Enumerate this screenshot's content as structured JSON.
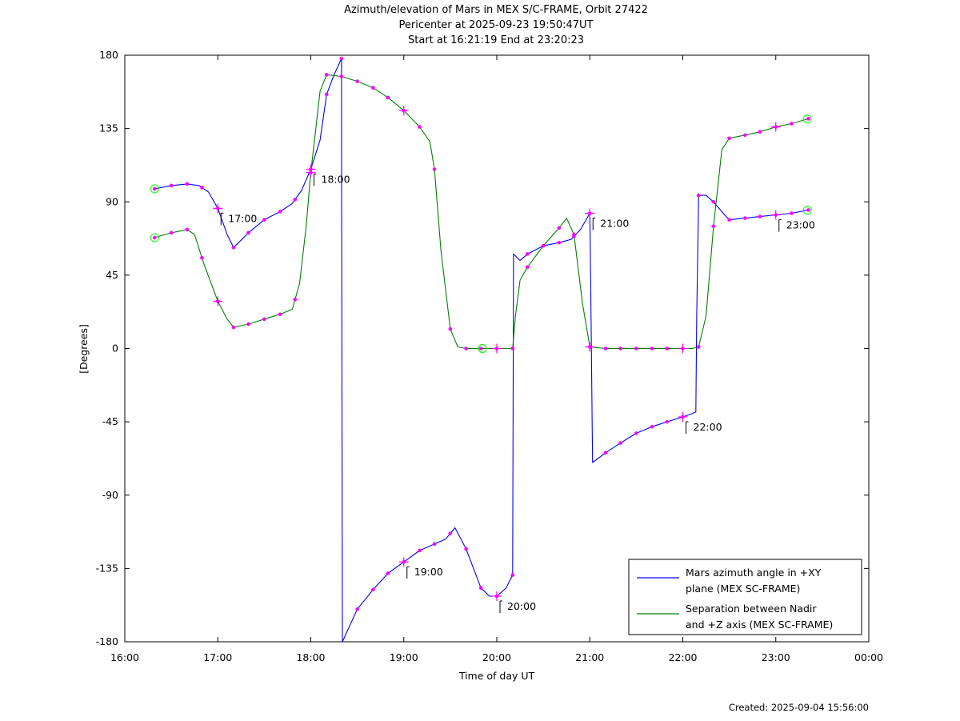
{
  "title_lines": [
    "Azimuth/elevation of Mars in MEX S/C-FRAME,  Orbit 27422",
    "Pericenter at 2025-09-23 19:50:47UT",
    "Start at 16:21:19 End at 23:20:23"
  ],
  "footer": "Created: 2025-09-04 15:56:00",
  "chart_data": {
    "type": "line",
    "xlabel": "Time of day UT",
    "ylabel": "[Degrees]",
    "xlim": [
      16.0,
      24.0
    ],
    "ylim": [
      -180,
      180
    ],
    "x_ticks": [
      16,
      17,
      18,
      19,
      20,
      21,
      22,
      23,
      24
    ],
    "x_tick_labels": [
      "16:00",
      "17:00",
      "18:00",
      "19:00",
      "20:00",
      "21:00",
      "22:00",
      "23:00",
      "00:00"
    ],
    "y_ticks": [
      180,
      135,
      90,
      45,
      0,
      -45,
      -90,
      -135,
      -180
    ],
    "y_tick_labels": [
      "180",
      "135",
      "90",
      "45",
      "0",
      "-45",
      "-90",
      "-135",
      "-180"
    ],
    "grid": false,
    "legend_position": "bottom-right",
    "series": [
      {
        "name": "Mars azimuth angle in +XY plane (MEX SC-FRAME)",
        "legend_lines": [
          "Mars azimuth angle in +XY",
          "plane (MEX SC-FRAME)"
        ],
        "color": "#0000ff",
        "x": [
          16.32,
          16.5,
          16.67,
          16.8,
          16.9,
          17.0,
          17.1,
          17.17,
          17.33,
          17.5,
          17.67,
          17.8,
          17.9,
          18.0,
          18.1,
          18.17,
          18.25,
          18.33,
          18.331,
          18.34,
          18.5,
          18.67,
          18.83,
          19.0,
          19.17,
          19.33,
          19.45,
          19.55,
          19.67,
          19.83,
          19.92,
          20.0,
          20.1,
          20.17,
          20.18,
          20.25,
          20.33,
          20.5,
          20.67,
          20.8,
          20.9,
          21.0,
          21.01,
          21.03,
          21.17,
          21.33,
          21.5,
          21.67,
          21.83,
          22.0,
          22.1,
          22.14,
          22.15,
          22.17,
          22.25,
          22.33,
          22.45,
          22.5,
          22.67,
          22.83,
          23.0,
          23.17,
          23.35
        ],
        "y": [
          98,
          100,
          101,
          100,
          96,
          86,
          70,
          62,
          71,
          79,
          84,
          89,
          97,
          110,
          128,
          156,
          168,
          178,
          100,
          -180,
          -160,
          -148,
          -138,
          -131,
          -124,
          -120,
          -117,
          -110,
          -123,
          -147,
          -152,
          -152,
          -147,
          -139,
          58,
          54,
          58,
          63,
          65,
          67,
          73,
          83,
          40,
          -70,
          -64,
          -58,
          -52,
          -48,
          -45,
          -42,
          -40,
          -39,
          20,
          94,
          94,
          90,
          82,
          79,
          80,
          81,
          82,
          83,
          85
        ]
      },
      {
        "name": "Separation between Nadir and +Z axis (MEX SC-FRAME)",
        "legend_lines": [
          "Separation between Nadir",
          "and +Z axis (MEX SC-FRAME)"
        ],
        "color": "#008000",
        "x": [
          16.32,
          16.5,
          16.67,
          16.75,
          16.85,
          17.0,
          17.1,
          17.17,
          17.33,
          17.5,
          17.67,
          17.8,
          17.88,
          17.95,
          18.0,
          18.1,
          18.17,
          18.33,
          18.5,
          18.67,
          18.83,
          19.0,
          19.17,
          19.28,
          19.33,
          19.4,
          19.5,
          19.58,
          19.67,
          19.85,
          20.0,
          20.17,
          20.2,
          20.25,
          20.33,
          20.5,
          20.67,
          20.75,
          20.83,
          20.92,
          21.0,
          21.17,
          21.33,
          21.5,
          21.67,
          21.83,
          22.0,
          22.1,
          22.17,
          22.25,
          22.33,
          22.42,
          22.5,
          22.67,
          22.83,
          23.0,
          23.17,
          23.35
        ],
        "y": [
          68,
          71,
          73,
          70,
          52,
          29,
          18,
          13,
          15,
          18,
          21,
          24,
          40,
          75,
          108,
          158,
          168,
          167,
          164,
          160,
          154,
          146,
          136,
          127,
          110,
          60,
          12,
          1,
          0,
          0,
          0,
          0,
          20,
          42,
          50,
          63,
          74,
          80,
          70,
          28,
          1,
          0,
          0,
          0,
          0,
          0,
          0,
          0,
          1,
          20,
          75,
          122,
          129,
          131,
          133,
          136,
          138,
          141
        ]
      }
    ],
    "markers": {
      "color": "#ff00ff",
      "times": [
        16.32,
        16.5,
        16.67,
        16.83,
        17.0,
        17.17,
        17.33,
        17.5,
        17.67,
        17.83,
        18.0,
        18.17,
        18.33,
        18.5,
        18.67,
        18.83,
        19.0,
        19.17,
        19.33,
        19.5,
        19.67,
        19.83,
        20.0,
        20.17,
        20.33,
        20.5,
        20.67,
        20.83,
        21.0,
        21.17,
        21.33,
        21.5,
        21.67,
        21.83,
        22.0,
        22.17,
        22.33,
        22.5,
        22.67,
        22.83,
        23.0,
        23.17,
        23.35
      ],
      "hour_ticks": [
        17,
        18,
        19,
        20,
        21,
        22,
        23
      ],
      "hour_labels": [
        "17:00",
        "18:00",
        "19:00",
        "20:00",
        "21:00",
        "22:00",
        "23:00"
      ],
      "hour_label_anchor_y": [
        86,
        110,
        -131,
        -152,
        83,
        -42,
        82
      ],
      "pericenter_time": 19.846,
      "start_time": 16.322,
      "end_time": 23.339
    }
  }
}
